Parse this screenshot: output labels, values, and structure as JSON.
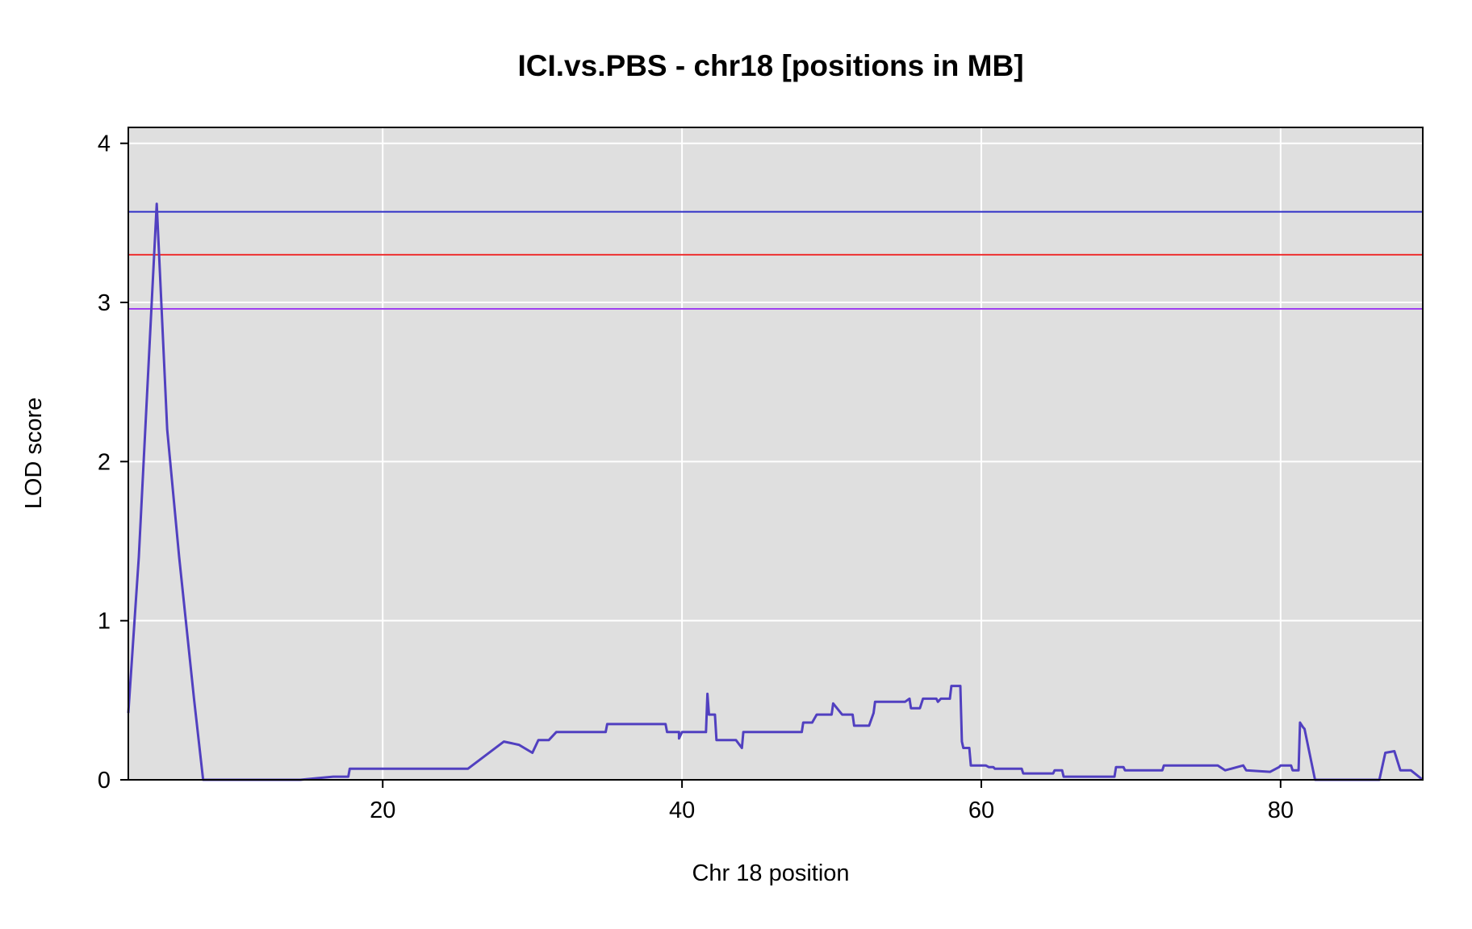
{
  "chart_data": {
    "type": "line",
    "title": "ICI.vs.PBS - chr18 [positions in MB]",
    "xlabel": "Chr 18 position",
    "ylabel": "LOD score",
    "xlim": [
      3,
      89.5
    ],
    "ylim": [
      0,
      4.1
    ],
    "x_ticks": [
      20,
      40,
      60,
      80
    ],
    "y_ticks": [
      0,
      1,
      2,
      3,
      4
    ],
    "grid": true,
    "colors": {
      "panel_bg": "#dfdfdf",
      "grid": "#ffffff",
      "series": "#5140c0"
    },
    "thresholds": [
      {
        "value": 3.57,
        "color": "#3030c8"
      },
      {
        "value": 3.3,
        "color": "#ee3030"
      },
      {
        "value": 2.96,
        "color": "#a040f0"
      }
    ],
    "series": [
      {
        "points": [
          [
            3.0,
            0.42
          ],
          [
            3.7,
            1.4
          ],
          [
            4.9,
            3.62
          ],
          [
            5.6,
            2.2
          ],
          [
            6.4,
            1.4
          ],
          [
            7.4,
            0.5
          ],
          [
            8.0,
            0.0
          ],
          [
            14.5,
            0.0
          ],
          [
            15.6,
            0.01
          ],
          [
            16.7,
            0.02
          ],
          [
            17.7,
            0.02
          ],
          [
            17.8,
            0.07
          ],
          [
            25.7,
            0.07
          ],
          [
            28.1,
            0.24
          ],
          [
            29.1,
            0.22
          ],
          [
            30.0,
            0.17
          ],
          [
            30.4,
            0.25
          ],
          [
            31.1,
            0.25
          ],
          [
            31.6,
            0.3
          ],
          [
            34.9,
            0.3
          ],
          [
            35.0,
            0.35
          ],
          [
            38.9,
            0.35
          ],
          [
            39.0,
            0.3
          ],
          [
            39.8,
            0.3
          ],
          [
            39.8,
            0.26
          ],
          [
            40.0,
            0.3
          ],
          [
            41.6,
            0.3
          ],
          [
            41.7,
            0.54
          ],
          [
            41.8,
            0.41
          ],
          [
            42.2,
            0.41
          ],
          [
            42.3,
            0.25
          ],
          [
            43.6,
            0.25
          ],
          [
            44.0,
            0.2
          ],
          [
            44.1,
            0.3
          ],
          [
            48.0,
            0.3
          ],
          [
            48.1,
            0.36
          ],
          [
            48.7,
            0.36
          ],
          [
            49.0,
            0.41
          ],
          [
            50.0,
            0.41
          ],
          [
            50.1,
            0.48
          ],
          [
            50.7,
            0.41
          ],
          [
            51.4,
            0.41
          ],
          [
            51.5,
            0.34
          ],
          [
            52.5,
            0.34
          ],
          [
            52.8,
            0.42
          ],
          [
            52.9,
            0.49
          ],
          [
            54.9,
            0.49
          ],
          [
            55.2,
            0.51
          ],
          [
            55.3,
            0.45
          ],
          [
            55.9,
            0.45
          ],
          [
            56.1,
            0.51
          ],
          [
            57.0,
            0.51
          ],
          [
            57.1,
            0.49
          ],
          [
            57.3,
            0.51
          ],
          [
            57.9,
            0.51
          ],
          [
            58.0,
            0.59
          ],
          [
            58.6,
            0.59
          ],
          [
            58.7,
            0.24
          ],
          [
            58.8,
            0.2
          ],
          [
            59.2,
            0.2
          ],
          [
            59.3,
            0.09
          ],
          [
            60.3,
            0.09
          ],
          [
            60.5,
            0.08
          ],
          [
            60.8,
            0.08
          ],
          [
            60.9,
            0.07
          ],
          [
            62.7,
            0.07
          ],
          [
            62.8,
            0.04
          ],
          [
            64.8,
            0.04
          ],
          [
            64.9,
            0.06
          ],
          [
            65.4,
            0.06
          ],
          [
            65.5,
            0.02
          ],
          [
            68.9,
            0.02
          ],
          [
            69.0,
            0.08
          ],
          [
            69.5,
            0.08
          ],
          [
            69.6,
            0.06
          ],
          [
            72.1,
            0.06
          ],
          [
            72.2,
            0.09
          ],
          [
            75.8,
            0.09
          ],
          [
            76.3,
            0.06
          ],
          [
            77.5,
            0.09
          ],
          [
            77.7,
            0.06
          ],
          [
            79.3,
            0.05
          ],
          [
            79.9,
            0.08
          ],
          [
            80.0,
            0.09
          ],
          [
            80.7,
            0.09
          ],
          [
            80.8,
            0.06
          ],
          [
            81.2,
            0.06
          ],
          [
            81.3,
            0.36
          ],
          [
            81.5,
            0.33
          ],
          [
            81.6,
            0.32
          ],
          [
            82.3,
            0.0
          ],
          [
            86.6,
            0.0
          ],
          [
            87.0,
            0.17
          ],
          [
            87.6,
            0.18
          ],
          [
            88.0,
            0.06
          ],
          [
            88.7,
            0.06
          ],
          [
            89.5,
            0.0
          ]
        ]
      }
    ]
  }
}
